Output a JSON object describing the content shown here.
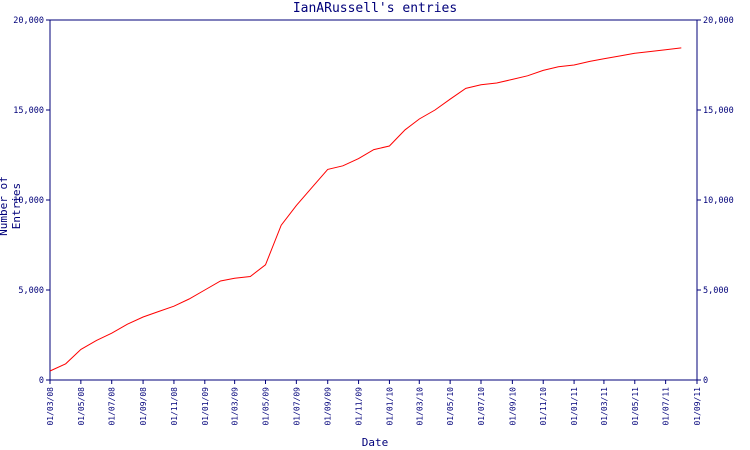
{
  "chart_data": {
    "type": "line",
    "title": "IanARussell's entries",
    "xlabel": "Date",
    "ylabel": "Number of Entries",
    "ylim": [
      0,
      20000
    ],
    "yticks": [
      "0",
      "5,000",
      "10,000",
      "15,000",
      "20,000"
    ],
    "ytick_values": [
      0,
      5000,
      10000,
      15000,
      20000
    ],
    "xticks": [
      "01/03/08",
      "01/05/08",
      "01/07/08",
      "01/09/08",
      "01/11/08",
      "01/01/09",
      "01/03/09",
      "01/05/09",
      "01/07/09",
      "01/09/09",
      "01/11/09",
      "01/01/10",
      "01/03/10",
      "01/05/10",
      "01/07/10",
      "01/09/10",
      "01/11/10",
      "01/01/11",
      "01/03/11",
      "01/05/11",
      "01/07/11",
      "01/09/11"
    ],
    "grid": false,
    "line_color": "#ff0000",
    "axis_color": "#00007a",
    "series": [
      {
        "x": [
          "2008-03-01",
          "2008-04-01",
          "2008-05-01",
          "2008-06-01",
          "2008-07-01",
          "2008-08-01",
          "2008-09-01",
          "2008-10-01",
          "2008-11-01",
          "2008-12-01",
          "2009-01-01",
          "2009-02-01",
          "2009-03-01",
          "2009-04-01",
          "2009-05-01",
          "2009-06-01",
          "2009-07-01",
          "2009-08-01",
          "2009-09-01",
          "2009-10-01",
          "2009-11-01",
          "2009-12-01",
          "2010-01-01",
          "2010-02-01",
          "2010-03-01",
          "2010-04-01",
          "2010-05-01",
          "2010-06-01",
          "2010-07-01",
          "2010-08-01",
          "2010-09-01",
          "2010-10-01",
          "2010-11-01",
          "2010-12-01",
          "2011-01-01",
          "2011-02-01",
          "2011-03-01",
          "2011-04-01",
          "2011-05-01",
          "2011-06-01",
          "2011-07-01",
          "2011-08-01"
        ],
        "y": [
          500,
          900,
          1700,
          2200,
          2600,
          3100,
          3500,
          3800,
          4100,
          4500,
          5000,
          5500,
          5650,
          5750,
          6400,
          8600,
          9700,
          10700,
          11700,
          11900,
          12300,
          12800,
          13000,
          13900,
          14500,
          15000,
          15600,
          16200,
          16400,
          16500,
          16700,
          16900,
          17200,
          17400,
          17500,
          17700,
          17850,
          18000,
          18150,
          18250,
          18350,
          18450
        ]
      }
    ]
  }
}
